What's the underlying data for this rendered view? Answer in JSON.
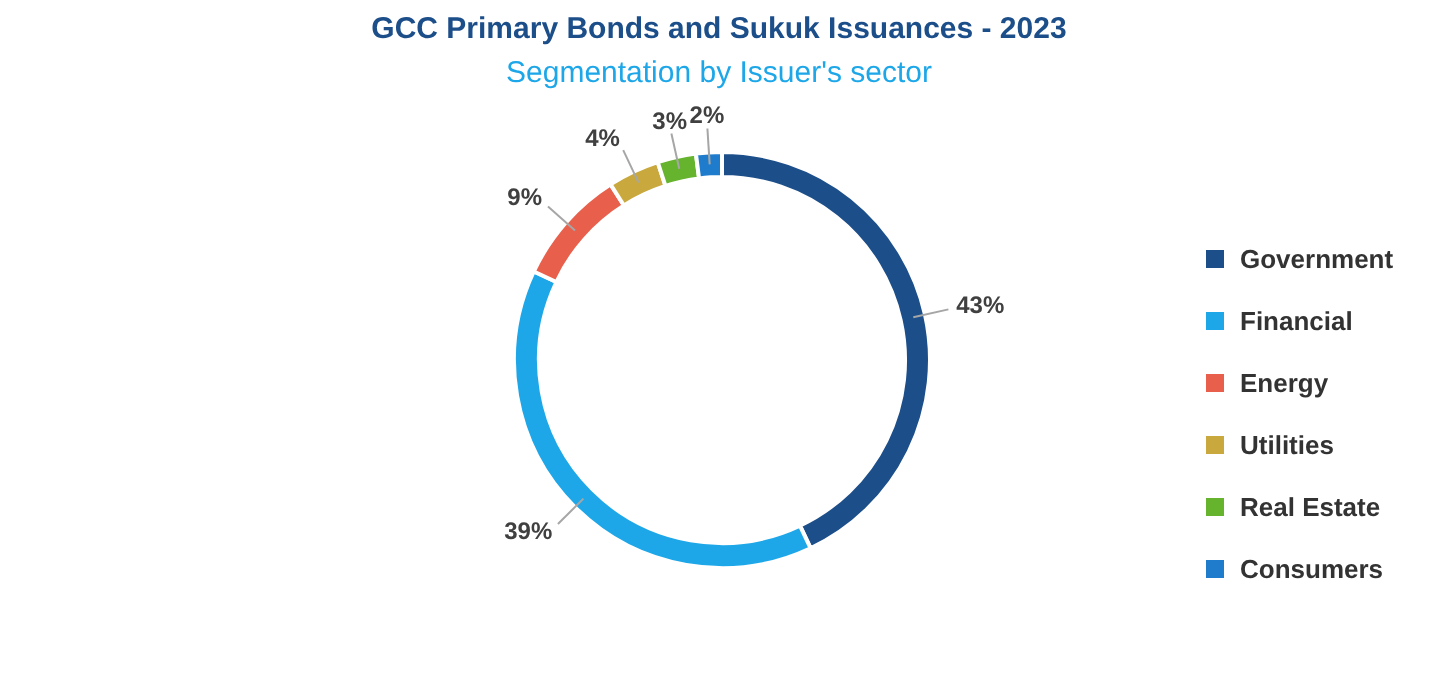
{
  "chart_data": {
    "type": "donut",
    "title": "GCC Primary Bonds and Sukuk Issuances - 2023",
    "subtitle": "Segmentation by Issuer's sector",
    "categories": [
      "Government",
      "Financial",
      "Energy",
      "Utilities",
      "Real Estate",
      "Consumers"
    ],
    "values": [
      43,
      39,
      9,
      4,
      3,
      2
    ],
    "value_labels": [
      "43%",
      "39%",
      "9%",
      "4%",
      "3%",
      "2%"
    ],
    "colors": [
      "#1c4e89",
      "#1ea7e8",
      "#e8604c",
      "#c9a83e",
      "#66b32e",
      "#1f7ccc"
    ],
    "legend": "right"
  }
}
